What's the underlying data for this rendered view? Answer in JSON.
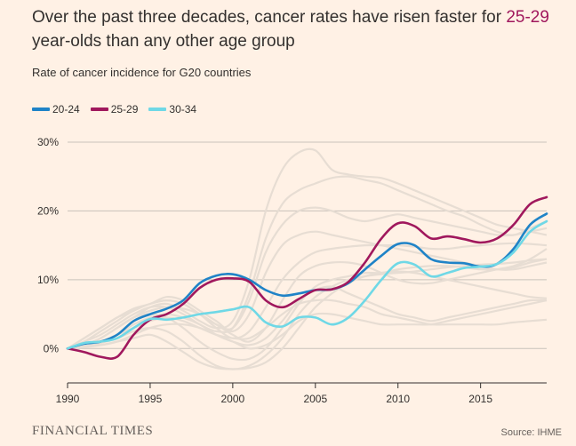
{
  "header": {
    "title_pre": "Over the past three decades, cancer rates have risen faster for ",
    "title_highlight": "25-29",
    "title_post": " year-olds than any other age group",
    "subtitle": "Rate of cancer incidence for G20 countries"
  },
  "footer": {
    "brand": "FINANCIAL TIMES",
    "source": "Source: IHME"
  },
  "colors": {
    "background": "#fff1e5",
    "grid": "#c9c2bb",
    "axis": "#33302e",
    "other": "#e7ddd3",
    "s20_24": "#1f83c7",
    "s25_29": "#a0185d",
    "s30_34": "#6fd8e6"
  },
  "chart_data": {
    "type": "line",
    "xlabel": "",
    "ylabel": "",
    "xlim": [
      1990,
      2019
    ],
    "ylim": [
      -5,
      30
    ],
    "x_ticks": [
      "1990",
      "1995",
      "2000",
      "2005",
      "2010",
      "2015"
    ],
    "y_ticks": [
      "0%",
      "10%",
      "20%",
      "30%"
    ],
    "grid": true,
    "legend_position": "top-left",
    "x": [
      1990,
      1991,
      1992,
      1993,
      1994,
      1995,
      1996,
      1997,
      1998,
      1999,
      2000,
      2001,
      2002,
      2003,
      2004,
      2005,
      2006,
      2007,
      2008,
      2009,
      2010,
      2011,
      2012,
      2013,
      2014,
      2015,
      2016,
      2017,
      2018,
      2019
    ],
    "series": [
      {
        "name": "20-24",
        "color": "#1f83c7",
        "highlight": true,
        "values": [
          0,
          0.7,
          1.0,
          2.0,
          4.0,
          5.0,
          5.8,
          7.0,
          9.5,
          10.6,
          10.8,
          10.0,
          8.5,
          7.7,
          8.0,
          8.5,
          8.6,
          9.5,
          11.5,
          13.5,
          15.2,
          15.0,
          13.0,
          12.5,
          12.4,
          11.9,
          12.3,
          14.5,
          18.0,
          19.6
        ]
      },
      {
        "name": "25-29",
        "color": "#a0185d",
        "highlight": true,
        "values": [
          0,
          -0.5,
          -1.2,
          -1.2,
          2.0,
          4.2,
          5.0,
          6.5,
          8.8,
          10.0,
          10.2,
          9.7,
          7.0,
          6.0,
          7.2,
          8.5,
          8.6,
          9.7,
          12.5,
          16.0,
          18.2,
          17.8,
          16.0,
          16.3,
          15.9,
          15.4,
          16.0,
          18.0,
          21.0,
          22.0
        ]
      },
      {
        "name": "30-34",
        "color": "#6fd8e6",
        "highlight": true,
        "values": [
          0,
          0.8,
          1.0,
          1.5,
          3.0,
          4.3,
          4.2,
          4.5,
          5.0,
          5.3,
          5.7,
          6.0,
          3.8,
          3.2,
          4.5,
          4.5,
          3.5,
          4.5,
          7.0,
          10.0,
          12.4,
          12.2,
          10.5,
          11.0,
          11.7,
          11.9,
          12.3,
          14.0,
          17.0,
          18.5
        ]
      },
      {
        "values": [
          0,
          0.5,
          1.5,
          3.0,
          4.5,
          6.0,
          6.5,
          5.5,
          4.0,
          3.0,
          4.0,
          10.0,
          20.0,
          26.0,
          28.5,
          28.8,
          26.0,
          25.3,
          25.0,
          24.8,
          24.0,
          23.0,
          22.0,
          21.0,
          20.0,
          19.0,
          18.0,
          17.5,
          17.0,
          16.5
        ]
      },
      {
        "values": [
          0,
          1.0,
          2.0,
          3.5,
          5.0,
          6.0,
          6.0,
          5.0,
          3.5,
          2.5,
          3.0,
          8.0,
          16.0,
          21.0,
          23.0,
          24.0,
          24.8,
          25.0,
          24.5,
          24.0,
          23.0,
          22.0,
          21.0,
          20.0,
          19.2,
          18.0,
          17.0,
          16.5,
          17.5,
          18.5
        ]
      },
      {
        "values": [
          0,
          1.5,
          3.0,
          4.5,
          5.5,
          6.5,
          7.0,
          6.5,
          5.0,
          3.5,
          3.0,
          7.0,
          14.0,
          18.0,
          20.0,
          20.5,
          20.0,
          19.0,
          18.5,
          19.0,
          19.5,
          19.0,
          18.5,
          18.0,
          17.5,
          17.0,
          16.5,
          16.5,
          17.0,
          17.5
        ]
      },
      {
        "values": [
          0,
          1.5,
          3.0,
          4.5,
          5.8,
          6.5,
          7.5,
          7.0,
          5.5,
          4.0,
          2.5,
          5.0,
          11.0,
          15.0,
          16.5,
          17.0,
          16.5,
          16.0,
          15.5,
          15.0,
          14.5,
          14.0,
          13.5,
          13.0,
          12.5,
          12.0,
          11.5,
          11.5,
          12.0,
          12.5
        ]
      },
      {
        "values": [
          0,
          1.0,
          2.5,
          4.0,
          5.5,
          6.5,
          7.0,
          6.5,
          5.0,
          3.0,
          1.5,
          2.5,
          6.0,
          10.0,
          12.5,
          14.0,
          14.5,
          14.8,
          15.0,
          15.0,
          15.0,
          14.8,
          14.5,
          14.5,
          14.8,
          15.0,
          15.2,
          15.3,
          15.2,
          15.0
        ]
      },
      {
        "values": [
          0,
          0.5,
          1.5,
          3.0,
          4.5,
          5.5,
          6.0,
          5.8,
          5.0,
          3.5,
          2.0,
          1.0,
          3.0,
          7.0,
          10.5,
          12.0,
          12.5,
          12.5,
          12.0,
          11.0,
          10.0,
          9.5,
          9.5,
          10.0,
          10.5,
          11.0,
          11.5,
          12.0,
          13.0,
          14.5
        ]
      },
      {
        "values": [
          0,
          0.5,
          1.0,
          2.0,
          3.5,
          4.5,
          5.0,
          4.5,
          3.5,
          2.0,
          1.0,
          0.5,
          1.5,
          4.0,
          7.0,
          8.5,
          9.0,
          8.0,
          7.0,
          6.0,
          5.0,
          4.5,
          4.0,
          4.5,
          5.0,
          5.5,
          6.0,
          6.5,
          7.0,
          7.0
        ]
      },
      {
        "values": [
          0,
          0.2,
          0.5,
          1.0,
          2.0,
          3.0,
          3.5,
          3.5,
          3.0,
          2.0,
          1.0,
          0.0,
          0.5,
          2.0,
          4.0,
          5.0,
          5.0,
          4.5,
          4.0,
          3.5,
          3.5,
          3.5,
          3.5,
          4.0,
          4.5,
          5.0,
          5.5,
          6.0,
          6.5,
          7.0
        ]
      },
      {
        "values": [
          0,
          0.5,
          1.0,
          2.0,
          3.0,
          4.0,
          4.5,
          4.0,
          3.0,
          2.0,
          1.5,
          1.5,
          3.0,
          5.0,
          6.5,
          7.0,
          7.0,
          6.5,
          6.0,
          5.0,
          4.5,
          4.0,
          3.5,
          3.5,
          3.5,
          3.5,
          3.5,
          3.8,
          4.0,
          4.2
        ]
      },
      {
        "values": [
          0,
          0.5,
          1.5,
          3.0,
          4.5,
          5.0,
          4.5,
          3.0,
          1.0,
          -0.5,
          -1.5,
          -1.5,
          0.0,
          3.0,
          6.5,
          9.0,
          10.0,
          10.5,
          11.0,
          11.0,
          11.5,
          11.8,
          12.0,
          12.0,
          11.8,
          11.5,
          11.5,
          11.8,
          12.5,
          13.0
        ]
      },
      {
        "values": [
          0,
          0.3,
          0.8,
          1.5,
          2.5,
          3.0,
          2.5,
          1.0,
          -1.0,
          -2.5,
          -3.0,
          -2.5,
          -1.0,
          1.5,
          5.0,
          7.5,
          9.0,
          10.0,
          10.5,
          10.8,
          11.0,
          11.2,
          11.5,
          11.8,
          12.0,
          12.2,
          12.3,
          12.5,
          12.8,
          13.0
        ]
      },
      {
        "values": [
          0,
          0.3,
          0.5,
          1.0,
          1.5,
          2.0,
          1.0,
          -0.5,
          -2.0,
          -2.8,
          -3.0,
          -2.8,
          -2.0,
          0.0,
          3.0,
          6.0,
          8.0,
          9.5,
          10.5,
          11.0,
          11.2,
          11.0,
          10.5,
          10.0,
          9.5,
          9.0,
          8.5,
          8.0,
          7.5,
          7.3
        ]
      }
    ]
  }
}
